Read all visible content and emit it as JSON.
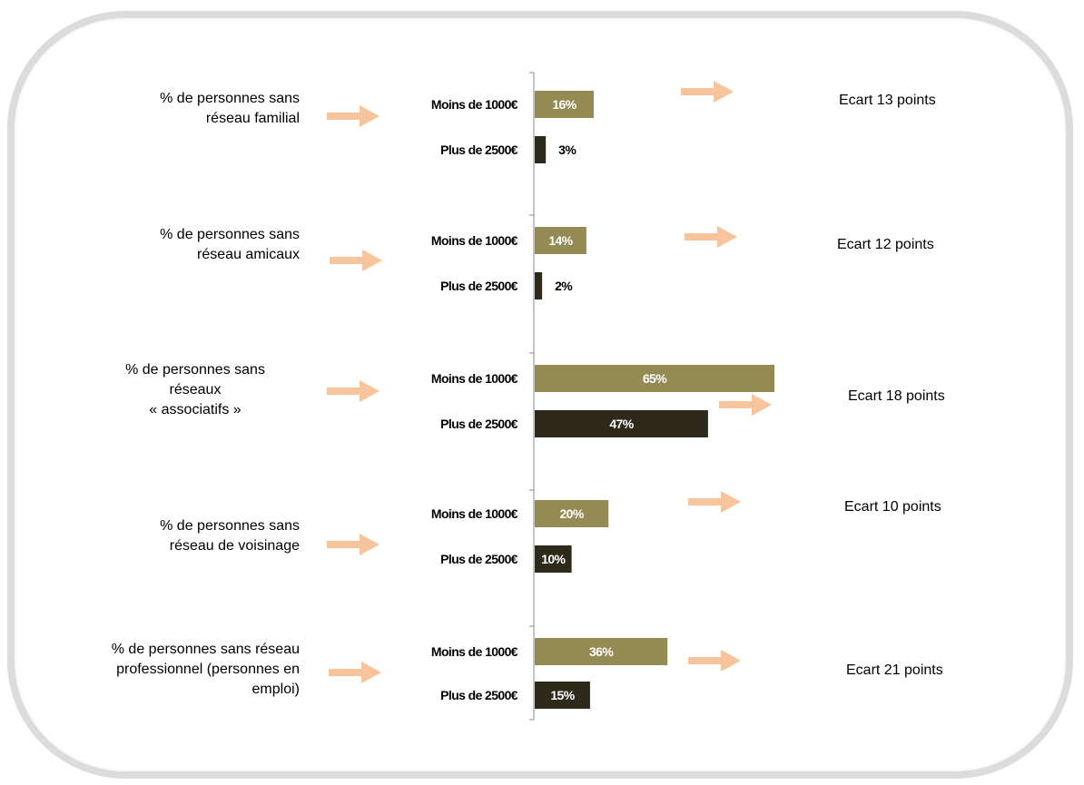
{
  "colors": {
    "low_income": "#948a54",
    "high_income": "#2d2a1b",
    "arrow": "#f8c49b",
    "axis": "#888888",
    "frame": "#dcdcdc"
  },
  "chart_data": {
    "type": "bar",
    "orientation": "horizontal",
    "series": [
      {
        "name": "Moins de 1000€",
        "values": [
          16,
          14,
          65,
          20,
          36
        ]
      },
      {
        "name": "Plus de 2500€",
        "values": [
          3,
          2,
          47,
          10,
          15
        ]
      }
    ],
    "categories": [
      "% de personnes sans\nréseau familial",
      "% de personnes sans\nréseau amicaux",
      "% de personnes sans\nréseaux\n« associatifs »",
      "% de personnes sans\nréseau de voisinage",
      "% de personnes sans réseau\nprofessionnel (personnes en\nemploi)"
    ],
    "value_labels": [
      [
        "16%",
        "3%"
      ],
      [
        "14%",
        "2%"
      ],
      [
        "65%",
        "47%"
      ],
      [
        "20%",
        "10%"
      ],
      [
        "36%",
        "15%"
      ]
    ],
    "gaps": [
      "Ecart 13 points",
      "Ecart 12 points",
      "Ecart 18 points",
      "Ecart 10 points",
      "Ecart 21 points"
    ],
    "xlim": [
      0,
      65
    ],
    "legend": "none",
    "grid": false
  }
}
